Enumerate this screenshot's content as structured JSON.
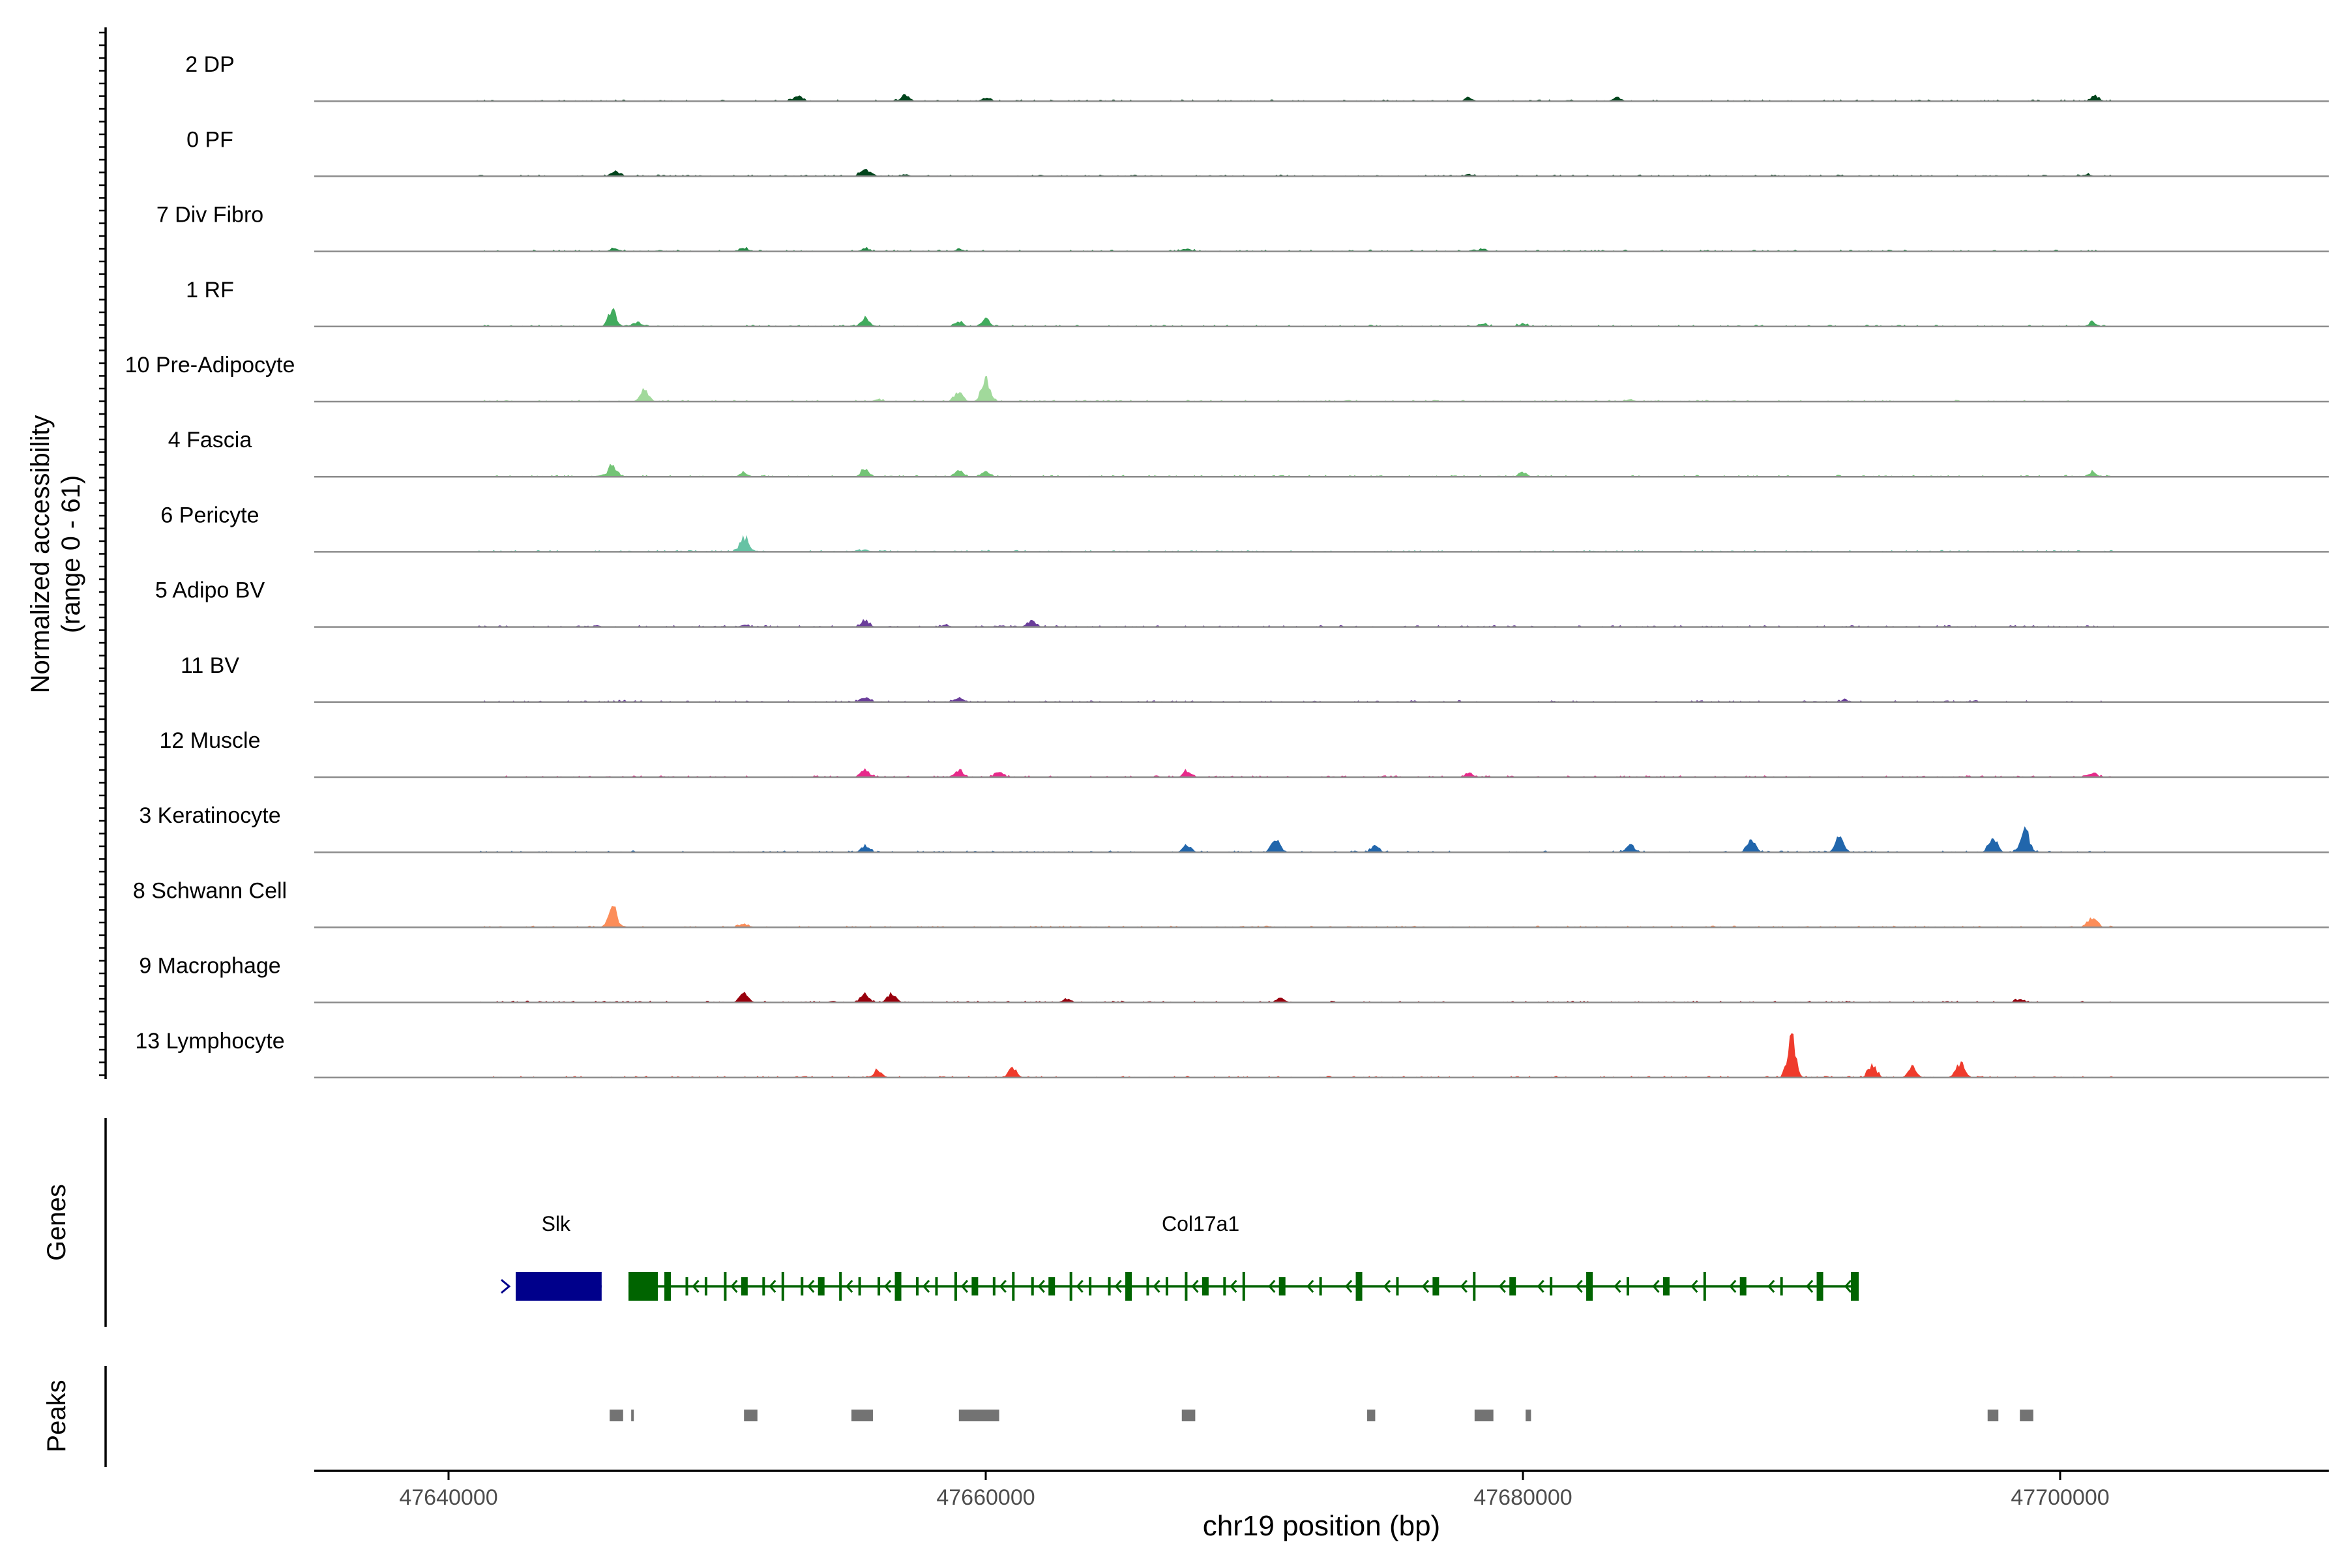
{
  "chart_data": {
    "type": "area",
    "title": "",
    "chromosome": "chr19",
    "xlabel": "chr19 position (bp)",
    "xlim": [
      47635000,
      47710000
    ],
    "x_ticks": [
      47640000,
      47660000,
      47680000,
      47700000
    ],
    "x_tick_labels": [
      "47640000",
      "47660000",
      "47680000",
      "47700000"
    ],
    "ylabel_line1": "Normalized accessibility",
    "ylabel_line2": "(range 0 - 61)",
    "ylim": [
      0,
      61
    ],
    "genes_label": "Genes",
    "peaks_label": "Peaks",
    "tracks": [
      {
        "name": "2 DP",
        "color": "#00441b",
        "peaks": [
          [
            47653000,
            5
          ],
          [
            47657000,
            6
          ],
          [
            47660000,
            3
          ],
          [
            47683500,
            4
          ],
          [
            47701300,
            5
          ],
          [
            47678000,
            3
          ]
        ]
      },
      {
        "name": "0 PF",
        "color": "#00441b",
        "peaks": [
          [
            47646200,
            5
          ],
          [
            47655500,
            7
          ],
          [
            47657000,
            2
          ],
          [
            47678000,
            2
          ],
          [
            47701000,
            2
          ]
        ]
      },
      {
        "name": "7 Div Fibro",
        "color": "#238b45",
        "peaks": [
          [
            47646200,
            3
          ],
          [
            47651000,
            3
          ],
          [
            47655500,
            3
          ],
          [
            47659000,
            2
          ],
          [
            47667500,
            3
          ],
          [
            47678500,
            2
          ]
        ]
      },
      {
        "name": "1 RF",
        "color": "#41ab5d",
        "peaks": [
          [
            47646100,
            15
          ],
          [
            47647000,
            4
          ],
          [
            47655500,
            8
          ],
          [
            47659000,
            4
          ],
          [
            47660000,
            6
          ],
          [
            47678500,
            3
          ],
          [
            47680000,
            3
          ],
          [
            47701200,
            4
          ]
        ]
      },
      {
        "name": "10 Pre-Adipocyte",
        "color": "#a1d99b",
        "peaks": [
          [
            47647300,
            12
          ],
          [
            47659000,
            9
          ],
          [
            47660000,
            22
          ],
          [
            47656000,
            2
          ],
          [
            47684000,
            2
          ]
        ]
      },
      {
        "name": "4 Fascia",
        "color": "#74c476",
        "peaks": [
          [
            47646100,
            11
          ],
          [
            47651000,
            4
          ],
          [
            47655500,
            7
          ],
          [
            47659000,
            6
          ],
          [
            47660000,
            5
          ],
          [
            47680000,
            4
          ],
          [
            47701200,
            4
          ]
        ]
      },
      {
        "name": "6 Pericyte",
        "color": "#66c2a4",
        "peaks": [
          [
            47651000,
            14
          ],
          [
            47655500,
            2
          ],
          [
            47660000,
            1
          ]
        ]
      },
      {
        "name": "5 Adipo BV",
        "color": "#6a3d9a",
        "peaks": [
          [
            47655500,
            6
          ],
          [
            47661700,
            6
          ],
          [
            47658500,
            2
          ],
          [
            47651000,
            2
          ]
        ]
      },
      {
        "name": "11 BV",
        "color": "#6a3d9a",
        "peaks": [
          [
            47655500,
            5
          ],
          [
            47659000,
            4
          ],
          [
            47646500,
            1
          ],
          [
            47676000,
            1
          ],
          [
            47692000,
            2
          ]
        ]
      },
      {
        "name": "12 Muscle",
        "color": "#e7298a",
        "peaks": [
          [
            47655500,
            8
          ],
          [
            47659000,
            7
          ],
          [
            47660500,
            5
          ],
          [
            47667500,
            6
          ],
          [
            47678000,
            4
          ],
          [
            47701200,
            4
          ]
        ]
      },
      {
        "name": "3 Keratinocyte",
        "color": "#2166ac",
        "peaks": [
          [
            47655500,
            6
          ],
          [
            47667500,
            7
          ],
          [
            47670800,
            14
          ],
          [
            47674500,
            6
          ],
          [
            47684000,
            7
          ],
          [
            47688500,
            12
          ],
          [
            47691800,
            15
          ],
          [
            47697500,
            14
          ],
          [
            47698700,
            21
          ]
        ]
      },
      {
        "name": "8 Schwann Cell",
        "color": "#fc8d59",
        "peaks": [
          [
            47646100,
            22
          ],
          [
            47651000,
            3
          ],
          [
            47701200,
            9
          ]
        ]
      },
      {
        "name": "9 Macrophage",
        "color": "#99000d",
        "peaks": [
          [
            47651000,
            10
          ],
          [
            47655500,
            8
          ],
          [
            47656500,
            9
          ],
          [
            47663000,
            3
          ],
          [
            47671000,
            3
          ],
          [
            47698500,
            3
          ]
        ]
      },
      {
        "name": "13 Lymphocyte",
        "color": "#ef3b2c",
        "peaks": [
          [
            47656000,
            7
          ],
          [
            47661000,
            9
          ],
          [
            47690000,
            38
          ],
          [
            47693000,
            12
          ],
          [
            47694500,
            10
          ],
          [
            47696300,
            14
          ]
        ]
      }
    ],
    "genes": [
      {
        "name": "Slk",
        "color": "#00008b",
        "strand": "+",
        "start": 47642500,
        "end": 47645700
      },
      {
        "name": "Col17a1",
        "color": "#006400",
        "strand": "-",
        "start": 47646700,
        "end": 47692500
      }
    ],
    "peak_regions": [
      [
        47646000,
        47646500
      ],
      [
        47646800,
        47646850
      ],
      [
        47651000,
        47651500
      ],
      [
        47655000,
        47655800
      ],
      [
        47659000,
        47660500
      ],
      [
        47667300,
        47667800
      ],
      [
        47674200,
        47674500
      ],
      [
        47678200,
        47678900
      ],
      [
        47680100,
        47680300
      ],
      [
        47697300,
        47697700
      ],
      [
        47698500,
        47699000
      ]
    ]
  }
}
